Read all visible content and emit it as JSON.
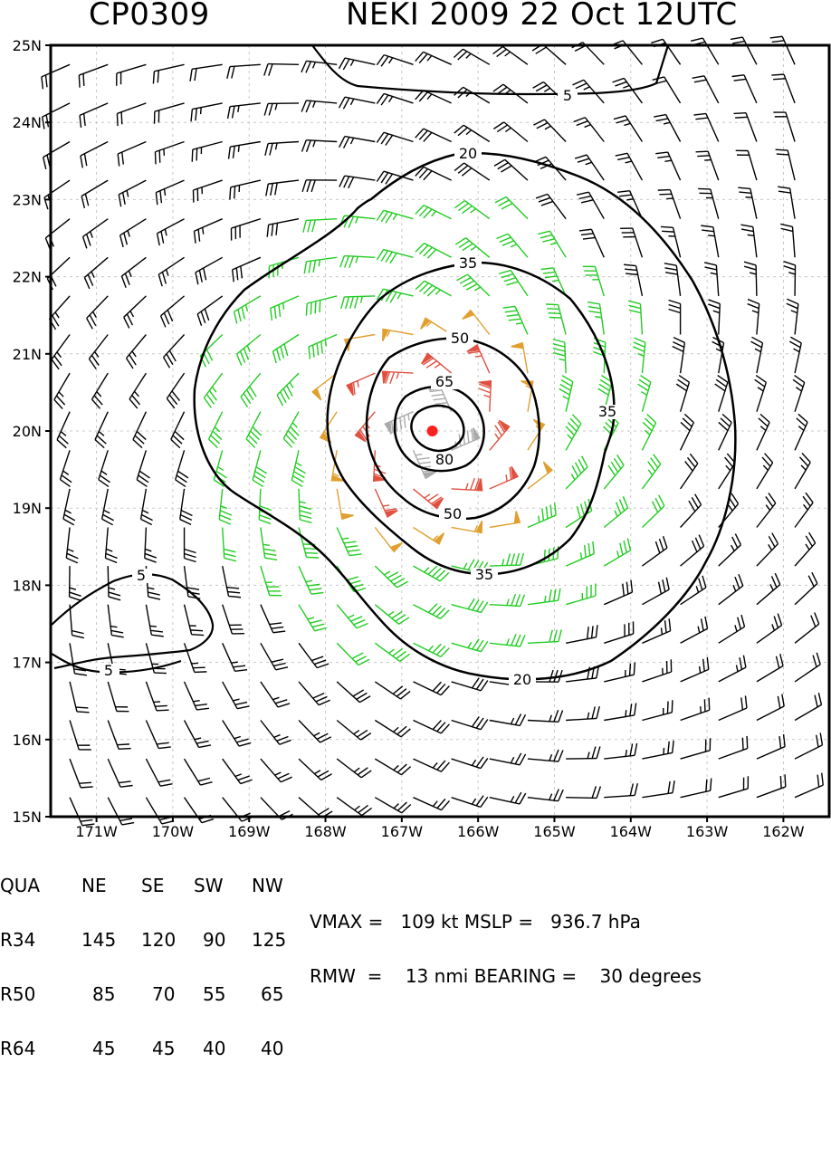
{
  "header": {
    "storm_id": "CP0309",
    "title": "NEKI 2009 22 Oct 12UTC"
  },
  "map": {
    "lat_labels": [
      "25N",
      "24N",
      "23N",
      "22N",
      "21N",
      "20N",
      "19N",
      "18N",
      "17N",
      "16N",
      "15N"
    ],
    "lon_labels": [
      "171W",
      "170W",
      "169W",
      "168W",
      "167W",
      "166W",
      "165W",
      "164W",
      "163W",
      "162W"
    ],
    "center": {
      "lon": -166.6,
      "lat": 20.0
    },
    "contour_labels": [
      "5",
      "5",
      "5",
      "20",
      "20",
      "35",
      "35",
      "35",
      "50",
      "50",
      "65",
      "80"
    ],
    "colors": {
      "calm": "#000000",
      "gale": "#22cc22",
      "storm": "#e0a030",
      "hurricane": "#e05040",
      "core": "#aaaaaa",
      "center": "#ff2020"
    },
    "wind_thresholds_kt": [
      34,
      50,
      64
    ]
  },
  "table": {
    "header": [
      "QUA",
      "NE",
      "SE",
      "SW",
      "NW"
    ],
    "rows": [
      {
        "label": "R34",
        "ne": "145",
        "se": "120",
        "sw": "90",
        "nw": "125"
      },
      {
        "label": "R50",
        "ne": "85",
        "se": "70",
        "sw": "55",
        "nw": "65"
      },
      {
        "label": "R64",
        "ne": "45",
        "se": "45",
        "sw": "40",
        "nw": "40"
      }
    ]
  },
  "stats": {
    "line1": "VMAX =   109 kt MSLP =   936.7 hPa",
    "line2": "RMW  =    13 nmi BEARING =    30 degrees"
  }
}
